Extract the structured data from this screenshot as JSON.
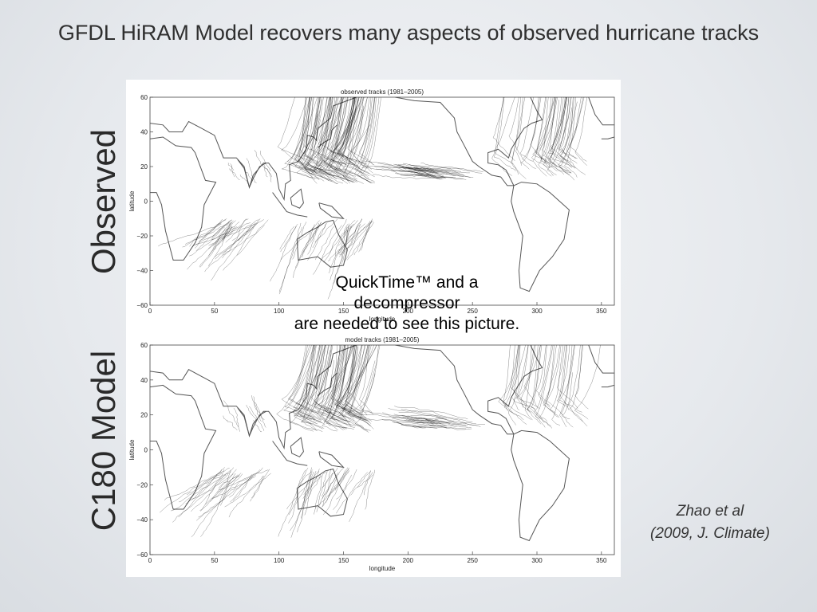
{
  "slide": {
    "title": "GFDL HiRAM Model recovers many aspects of observed hurricane tracks",
    "label_observed": "Observed",
    "label_model": "C180 Model",
    "quicktime_line1": "QuickTime™ and a",
    "quicktime_line2": "decompressor",
    "quicktime_line3": "are needed to see this picture.",
    "citation_line1": "Zhao et al",
    "citation_line2": "(2009, J. Climate)"
  },
  "panels": [
    {
      "title": "observed tracks (1981–2005)",
      "ylabel": "latitude",
      "xlabel": "longitude",
      "yticks": [
        "60",
        "40",
        "20",
        "0",
        "−20",
        "−40",
        "−60"
      ],
      "xticks": [
        "0",
        "50",
        "100",
        "150",
        "200",
        "250",
        "300",
        "350"
      ]
    },
    {
      "title": "model tracks (1981–2005)",
      "ylabel": "latitude",
      "xlabel": "longitude",
      "yticks": [
        "60",
        "40",
        "20",
        "0",
        "−20",
        "−40",
        "−60"
      ],
      "xticks": [
        "0",
        "50",
        "100",
        "150",
        "200",
        "250",
        "300",
        "350"
      ]
    }
  ],
  "colors": {
    "background": "#e6e9ed",
    "title_text": "#2f2f2f",
    "tracks": "#000000",
    "coastline": "#555555"
  }
}
